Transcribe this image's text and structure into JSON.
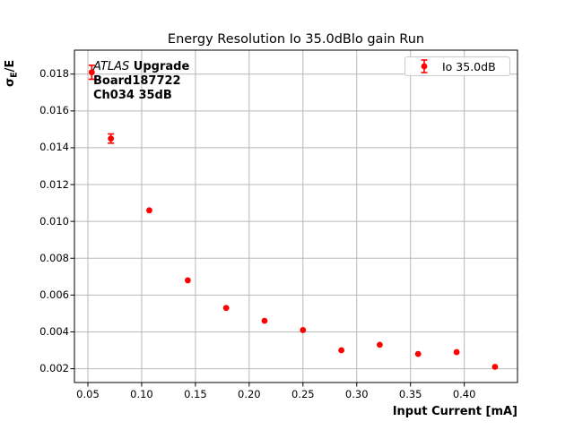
{
  "chart_data": {
    "type": "scatter",
    "title": "Energy Resolution Io 35.0dBlo gain Run",
    "xlabel": "Input Current [mA]",
    "ylabel": "σE/E",
    "ylabel_parts": {
      "sigma": "σ",
      "sub": "E",
      "rest": "/E"
    },
    "xlim": [
      0.0375,
      0.4495
    ],
    "ylim": [
      0.00125,
      0.0193
    ],
    "xticks": [
      0.05,
      0.1,
      0.15,
      0.2,
      0.25,
      0.3,
      0.35,
      0.4
    ],
    "xtick_labels": [
      "0.05",
      "0.10",
      "0.15",
      "0.20",
      "0.25",
      "0.30",
      "0.35",
      "0.40"
    ],
    "yticks": [
      0.002,
      0.004,
      0.006,
      0.008,
      0.01,
      0.012,
      0.014,
      0.016,
      0.018
    ],
    "ytick_labels": [
      "0.002",
      "0.004",
      "0.006",
      "0.008",
      "0.010",
      "0.012",
      "0.014",
      "0.016",
      "0.018"
    ],
    "grid": true,
    "legend": {
      "position": "upper right",
      "entries": [
        {
          "label": "Io 35.0dB",
          "marker": "errorbar-point",
          "color": "#ff0000"
        }
      ]
    },
    "annotation": {
      "experiment": "ATLAS",
      "experiment_suffix": " Upgrade",
      "board": "Board187722",
      "channel": "Ch034 35dB"
    },
    "series": [
      {
        "name": "Io 35.0dB",
        "color": "#ff0000",
        "marker": "circle",
        "x": [
          0.0536,
          0.0714,
          0.1071,
          0.1429,
          0.1786,
          0.2143,
          0.25,
          0.2857,
          0.3214,
          0.3571,
          0.3929,
          0.4286
        ],
        "y": [
          0.0181,
          0.0145,
          0.0106,
          0.0068,
          0.0053,
          0.0046,
          0.0041,
          0.003,
          0.0033,
          0.0028,
          0.0029,
          0.0021
        ],
        "yerr": [
          0.00038,
          0.00025,
          0.00012,
          8e-05,
          6e-05,
          5e-05,
          5e-05,
          4e-05,
          4e-05,
          4e-05,
          4e-05,
          3e-05
        ]
      }
    ]
  },
  "colors": {
    "series": "#ff0000",
    "grid": "#b8b8b8",
    "spine": "#000000",
    "background": "#ffffff",
    "legend_border": "#cccccc"
  }
}
